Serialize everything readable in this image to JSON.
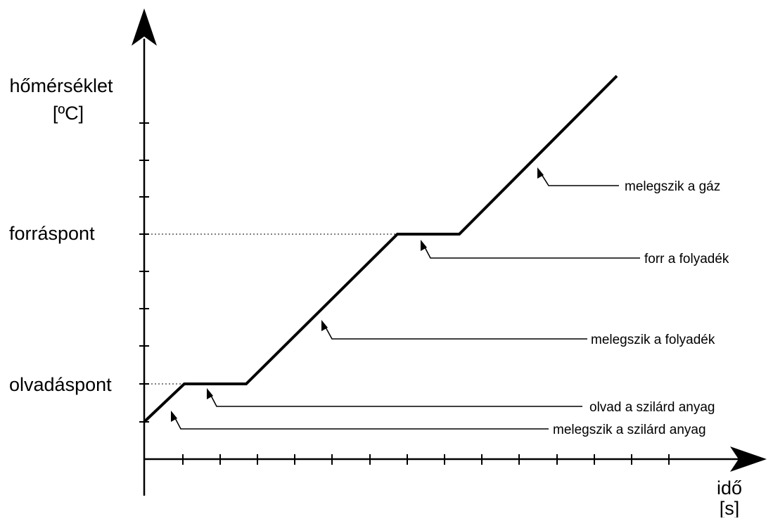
{
  "y_axis": {
    "label_line1": "hőmérséklet",
    "label_line2": "[ºC]"
  },
  "x_axis": {
    "label_line1": "idő",
    "label_line2": "[s]"
  },
  "levels": {
    "boiling_point": "forráspont",
    "melting_point": "olvadáspont"
  },
  "phases": {
    "gas_heating": "melegszik a gáz",
    "liquid_boiling": "forr a folyadék",
    "liquid_heating": "melegszik a folyadék",
    "solid_melting": "olvad a szilárd anyag",
    "solid_heating": "melegszik a szilárd anyag"
  }
}
